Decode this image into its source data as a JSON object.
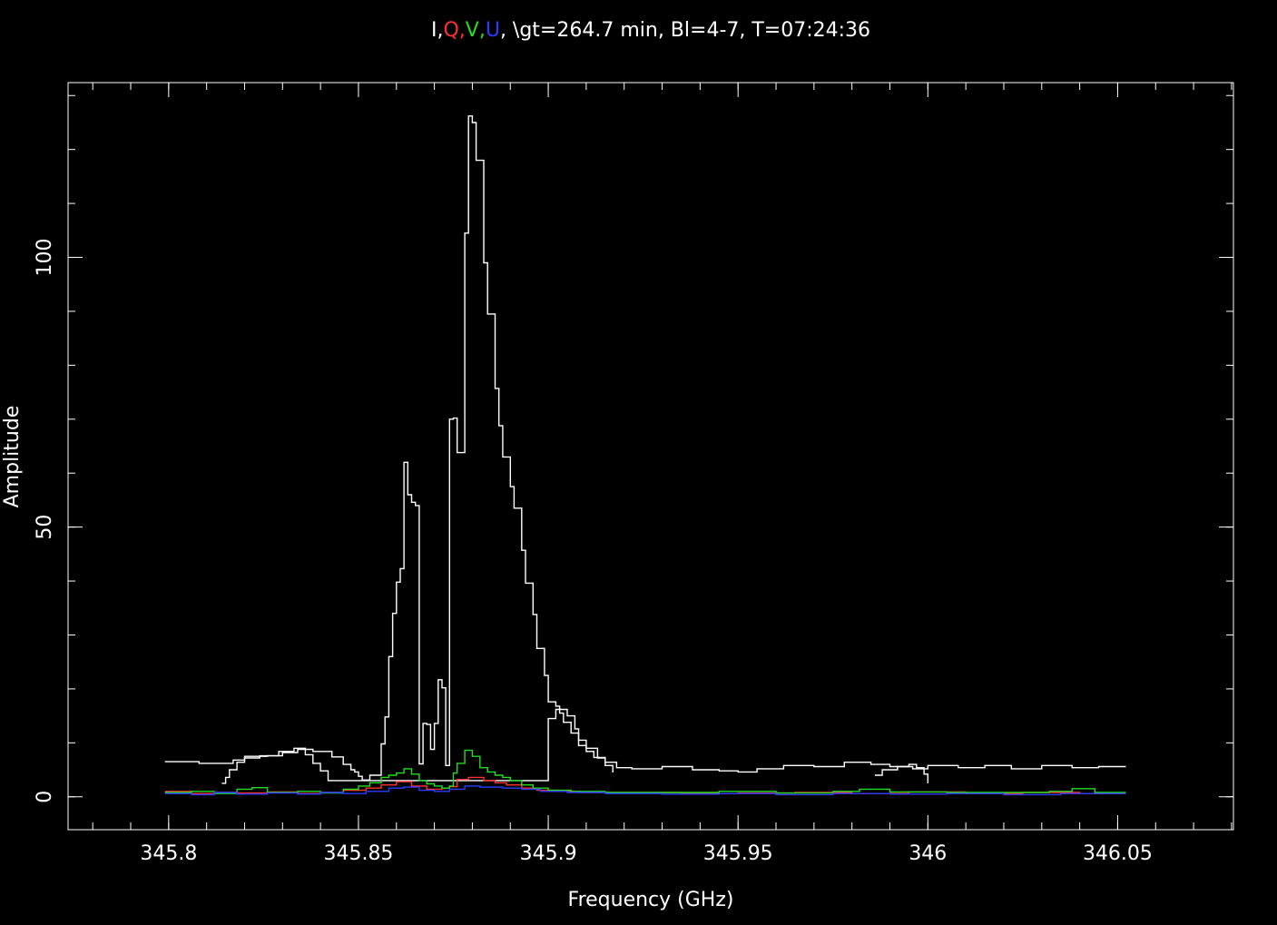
{
  "colors": {
    "background": "#000000",
    "axes": "#ffffff",
    "I": "#ffffff",
    "Q": "#ff3030",
    "V": "#22dd22",
    "U": "#2a3cff"
  },
  "chart_data": {
    "type": "line",
    "style": "step",
    "title_parts": [
      {
        "text": "I",
        "color": "#ffffff"
      },
      {
        "text": ",",
        "color": "#ffffff"
      },
      {
        "text": "Q",
        "color": "#ff3030"
      },
      {
        "text": ",",
        "color": "#ff3030"
      },
      {
        "text": "V",
        "color": "#22dd22"
      },
      {
        "text": ",",
        "color": "#22dd22"
      },
      {
        "text": "U",
        "color": "#2a3cff"
      },
      {
        "text": ", \\gt=264.7  min,  Bl=4-7,  T=07:24:36",
        "color": "#ffffff"
      }
    ],
    "xlabel": "Frequency (GHz)",
    "ylabel": "Amplitude",
    "xlim": [
      345.7735,
      346.0805
    ],
    "ylim": [
      -6.1,
      132.4
    ],
    "x_ticks": [
      {
        "value": 345.8,
        "label": "345.8"
      },
      {
        "value": 345.85,
        "label": "345.85"
      },
      {
        "value": 345.9,
        "label": "345.9"
      },
      {
        "value": 345.95,
        "label": "345.95"
      },
      {
        "value": 346.0,
        "label": "346"
      },
      {
        "value": 346.05,
        "label": "346.05"
      }
    ],
    "y_ticks": [
      {
        "value": 0,
        "label": "0"
      },
      {
        "value": 50,
        "label": "50"
      },
      {
        "value": 100,
        "label": "100"
      }
    ],
    "x_minor_step": 0.01,
    "y_minor_step": 10,
    "series": [
      {
        "key": "I",
        "color": "#ffffff",
        "points": [
          [
            345.799,
            6.5
          ],
          [
            345.808,
            6.2
          ],
          [
            345.817,
            6.8
          ],
          [
            345.82,
            7.5
          ],
          [
            345.826,
            7.6
          ],
          [
            345.83,
            8.2
          ],
          [
            345.834,
            8.8
          ],
          [
            345.838,
            8.4
          ],
          [
            345.843,
            7.4
          ],
          [
            345.846,
            6.0
          ],
          [
            345.848,
            5.0
          ],
          [
            345.849,
            4.6
          ],
          [
            345.85,
            3.8
          ],
          [
            345.851,
            3.1
          ],
          [
            345.853,
            4.0
          ],
          [
            345.856,
            9.8
          ],
          [
            345.857,
            14.8
          ],
          [
            345.858,
            26.0
          ],
          [
            345.859,
            34.0
          ],
          [
            345.86,
            39.8
          ],
          [
            345.861,
            42.3
          ],
          [
            345.862,
            62.0
          ],
          [
            345.863,
            56.0
          ],
          [
            345.864,
            54.6
          ],
          [
            345.865,
            54.0
          ],
          [
            345.866,
            6.1
          ],
          [
            345.867,
            13.6
          ],
          [
            345.868,
            13.4
          ],
          [
            345.869,
            8.8
          ],
          [
            345.87,
            13.6
          ],
          [
            345.871,
            21.7
          ],
          [
            345.872,
            20.2
          ],
          [
            345.873,
            5.8
          ],
          [
            345.874,
            70.0
          ],
          [
            345.875,
            70.2
          ],
          [
            345.876,
            63.8
          ],
          [
            345.878,
            104.5
          ],
          [
            345.879,
            126.2
          ],
          [
            345.88,
            125.0
          ],
          [
            345.881,
            118.0
          ],
          [
            345.883,
            99.0
          ],
          [
            345.884,
            89.5
          ],
          [
            345.886,
            75.7
          ],
          [
            345.887,
            68.8
          ],
          [
            345.888,
            63.0
          ],
          [
            345.89,
            57.5
          ],
          [
            345.891,
            53.5
          ],
          [
            345.893,
            45.7
          ],
          [
            345.894,
            39.6
          ],
          [
            345.896,
            33.8
          ],
          [
            345.897,
            27.5
          ],
          [
            345.899,
            22.5
          ],
          [
            345.9,
            17.6
          ],
          [
            345.902,
            16.8
          ],
          [
            345.903,
            15.5
          ],
          [
            345.904,
            13.8
          ],
          [
            345.906,
            11.8
          ],
          [
            345.908,
            9.5
          ],
          [
            345.91,
            8.4
          ],
          [
            345.912,
            7.3
          ],
          [
            345.915,
            6.4
          ],
          [
            345.918,
            5.4
          ],
          [
            345.922,
            5.2
          ],
          [
            345.93,
            5.6
          ],
          [
            345.938,
            5.0
          ],
          [
            345.945,
            4.8
          ],
          [
            345.95,
            4.6
          ],
          [
            345.955,
            5.2
          ],
          [
            345.962,
            5.8
          ],
          [
            345.97,
            5.6
          ],
          [
            345.978,
            6.4
          ],
          [
            345.985,
            6.0
          ],
          [
            345.99,
            5.6
          ],
          [
            345.996,
            5.2
          ],
          [
            346.0,
            5.8
          ],
          [
            346.008,
            5.4
          ],
          [
            346.015,
            5.8
          ],
          [
            346.022,
            5.2
          ],
          [
            346.03,
            5.8
          ],
          [
            346.038,
            5.4
          ],
          [
            346.045,
            5.6
          ],
          [
            346.052,
            5.5
          ]
        ]
      },
      {
        "key": "I_secondary",
        "color": "#ffffff",
        "points": [
          [
            345.814,
            2.5
          ],
          [
            345.815,
            3.6
          ],
          [
            345.816,
            5.0
          ],
          [
            345.818,
            6.4
          ],
          [
            345.82,
            7.2
          ],
          [
            345.824,
            7.6
          ],
          [
            345.829,
            8.4
          ],
          [
            345.833,
            9.0
          ],
          [
            345.836,
            7.8
          ],
          [
            345.838,
            6.2
          ],
          [
            345.84,
            4.8
          ],
          [
            345.842,
            3.0
          ],
          [
            345.9,
            14.5
          ],
          [
            345.902,
            16.2
          ],
          [
            345.905,
            15.0
          ],
          [
            345.907,
            12.6
          ],
          [
            345.908,
            10.5
          ],
          [
            345.91,
            9.0
          ],
          [
            345.913,
            7.2
          ],
          [
            345.915,
            5.8
          ],
          [
            345.917,
            4.5
          ]
        ]
      },
      {
        "key": "I_tail",
        "color": "#ffffff",
        "points": [
          [
            345.986,
            4.0
          ],
          [
            345.988,
            5.0
          ],
          [
            345.992,
            5.6
          ],
          [
            345.995,
            6.0
          ],
          [
            345.997,
            5.4
          ],
          [
            345.999,
            4.2
          ],
          [
            346.0,
            2.5
          ]
        ]
      },
      {
        "key": "Q",
        "color": "#ff3030",
        "points": [
          [
            345.799,
            1.0
          ],
          [
            345.806,
            0.6
          ],
          [
            345.812,
            0.8
          ],
          [
            345.818,
            0.7
          ],
          [
            345.826,
            0.9
          ],
          [
            345.834,
            0.6
          ],
          [
            345.84,
            0.8
          ],
          [
            345.846,
            1.2
          ],
          [
            345.852,
            1.6
          ],
          [
            345.856,
            2.2
          ],
          [
            345.86,
            2.8
          ],
          [
            345.864,
            2.0
          ],
          [
            345.868,
            1.4
          ],
          [
            345.872,
            1.6
          ],
          [
            345.874,
            1.9
          ],
          [
            345.876,
            3.2
          ],
          [
            345.879,
            3.6
          ],
          [
            345.883,
            3.0
          ],
          [
            345.886,
            2.6
          ],
          [
            345.889,
            2.2
          ],
          [
            345.893,
            1.6
          ],
          [
            345.897,
            1.2
          ],
          [
            345.902,
            1.0
          ],
          [
            345.908,
            0.8
          ],
          [
            345.92,
            0.8
          ],
          [
            345.935,
            0.6
          ],
          [
            345.95,
            0.7
          ],
          [
            345.965,
            0.8
          ],
          [
            345.98,
            0.6
          ],
          [
            345.995,
            0.9
          ],
          [
            346.01,
            0.6
          ],
          [
            346.025,
            0.8
          ],
          [
            346.04,
            0.6
          ],
          [
            346.052,
            0.7
          ]
        ]
      },
      {
        "key": "V",
        "color": "#22dd22",
        "points": [
          [
            345.799,
            0.8
          ],
          [
            345.806,
            1.0
          ],
          [
            345.812,
            0.6
          ],
          [
            345.818,
            1.4
          ],
          [
            345.822,
            1.7
          ],
          [
            345.826,
            0.8
          ],
          [
            345.834,
            1.0
          ],
          [
            345.84,
            0.7
          ],
          [
            345.846,
            1.4
          ],
          [
            345.85,
            2.0
          ],
          [
            345.853,
            2.6
          ],
          [
            345.856,
            3.6
          ],
          [
            345.858,
            4.0
          ],
          [
            345.86,
            4.4
          ],
          [
            345.862,
            5.2
          ],
          [
            345.864,
            4.2
          ],
          [
            345.866,
            3.0
          ],
          [
            345.868,
            2.4
          ],
          [
            345.87,
            2.0
          ],
          [
            345.872,
            1.6
          ],
          [
            345.874,
            2.0
          ],
          [
            345.875,
            4.4
          ],
          [
            345.876,
            6.2
          ],
          [
            345.878,
            8.6
          ],
          [
            345.88,
            7.5
          ],
          [
            345.882,
            5.4
          ],
          [
            345.884,
            4.6
          ],
          [
            345.886,
            4.0
          ],
          [
            345.888,
            3.6
          ],
          [
            345.89,
            3.0
          ],
          [
            345.893,
            2.2
          ],
          [
            345.896,
            1.6
          ],
          [
            345.9,
            1.2
          ],
          [
            345.906,
            1.0
          ],
          [
            345.915,
            0.8
          ],
          [
            345.93,
            0.8
          ],
          [
            345.945,
            1.0
          ],
          [
            345.96,
            0.7
          ],
          [
            345.975,
            1.0
          ],
          [
            345.982,
            1.4
          ],
          [
            345.99,
            0.9
          ],
          [
            346.005,
            0.8
          ],
          [
            346.02,
            0.8
          ],
          [
            346.032,
            1.0
          ],
          [
            346.038,
            1.5
          ],
          [
            346.044,
            0.8
          ],
          [
            346.052,
            0.7
          ]
        ]
      },
      {
        "key": "U",
        "color": "#2a3cff",
        "points": [
          [
            345.799,
            0.6
          ],
          [
            345.806,
            0.4
          ],
          [
            345.812,
            0.8
          ],
          [
            345.818,
            0.5
          ],
          [
            345.826,
            0.7
          ],
          [
            345.834,
            0.5
          ],
          [
            345.84,
            0.8
          ],
          [
            345.846,
            0.6
          ],
          [
            345.852,
            1.0
          ],
          [
            345.858,
            1.6
          ],
          [
            345.862,
            1.8
          ],
          [
            345.866,
            1.2
          ],
          [
            345.87,
            1.0
          ],
          [
            345.874,
            1.4
          ],
          [
            345.878,
            2.0
          ],
          [
            345.882,
            1.8
          ],
          [
            345.888,
            1.6
          ],
          [
            345.893,
            1.4
          ],
          [
            345.898,
            1.0
          ],
          [
            345.905,
            0.8
          ],
          [
            345.915,
            0.6
          ],
          [
            345.93,
            0.5
          ],
          [
            345.945,
            0.6
          ],
          [
            345.96,
            0.4
          ],
          [
            345.975,
            0.6
          ],
          [
            345.99,
            0.5
          ],
          [
            346.005,
            0.6
          ],
          [
            346.02,
            0.4
          ],
          [
            346.035,
            0.6
          ],
          [
            346.052,
            0.5
          ]
        ]
      }
    ]
  }
}
